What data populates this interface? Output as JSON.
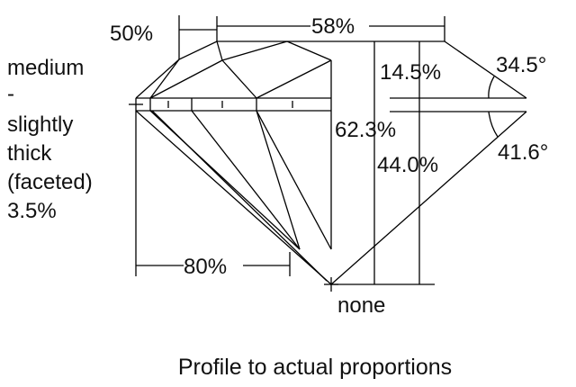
{
  "labels": {
    "star_percent": "50%",
    "table": "58%",
    "crown_height": "14.5%",
    "crown_angle": "34.5°",
    "total_depth": "62.3%",
    "pavilion_depth": "44.0%",
    "pavilion_angle": "41.6°",
    "lower_half": "80%",
    "culet": "none",
    "girdle": [
      "medium",
      "-",
      "slightly",
      "thick",
      "(faceted)",
      "3.5%"
    ]
  },
  "caption": "Profile to actual proportions"
}
